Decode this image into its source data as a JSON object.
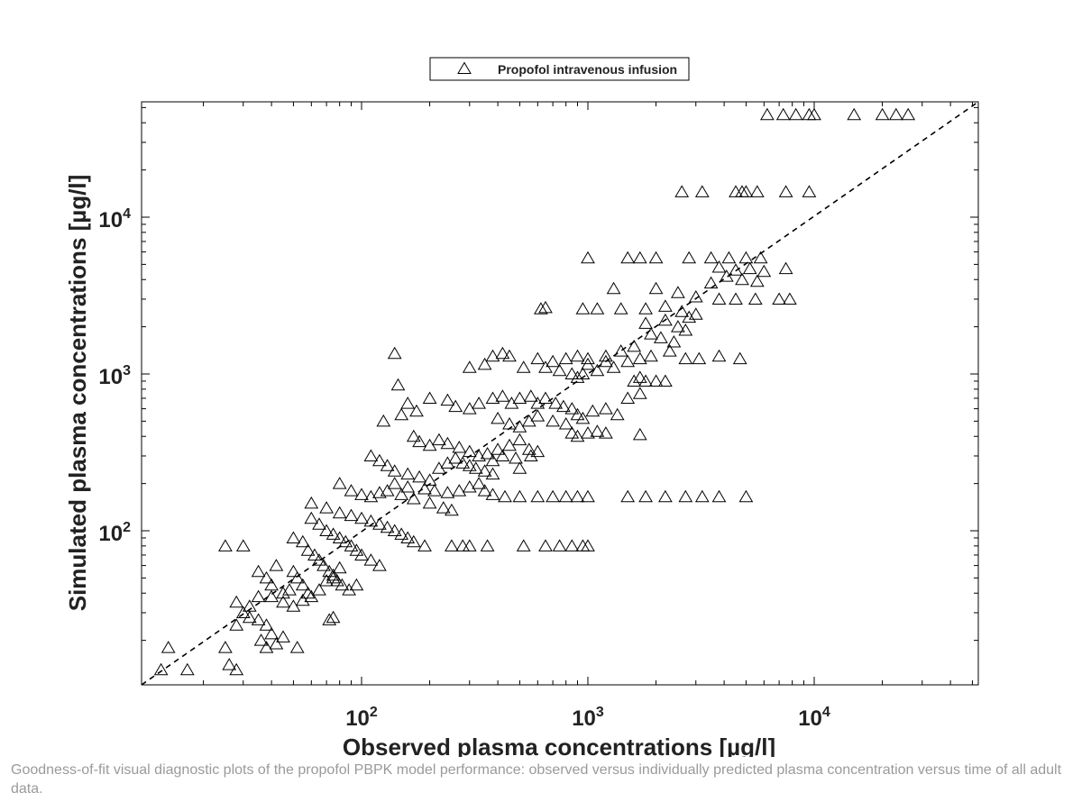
{
  "chart_data": {
    "type": "scatter",
    "xlabel": "Observed plasma concentrations [µg/l]",
    "ylabel": "Simulated plasma concentrations [µg/l]",
    "x_scale": "log",
    "y_scale": "log",
    "xlim": [
      10,
      50000
    ],
    "ylim": [
      10,
      50000
    ],
    "x_ticks": [
      {
        "value": 100,
        "base": "10",
        "exp": "2"
      },
      {
        "value": 1000,
        "base": "10",
        "exp": "3"
      },
      {
        "value": 10000,
        "base": "10",
        "exp": "4"
      }
    ],
    "y_ticks": [
      {
        "value": 100,
        "base": "10",
        "exp": "2"
      },
      {
        "value": 1000,
        "base": "10",
        "exp": "3"
      },
      {
        "value": 10000,
        "base": "10",
        "exp": "4"
      }
    ],
    "grid": false,
    "legend": {
      "position": "top-center",
      "marker": "triangle",
      "label": "Propofol intravenous infusion"
    },
    "reference_line": {
      "style": "dashed",
      "type": "identity (y = x)"
    },
    "series": [
      {
        "name": "Propofol intravenous infusion",
        "marker": "triangle",
        "color": "#000000",
        "points": [
          [
            6200,
            45000
          ],
          [
            7300,
            45000
          ],
          [
            8300,
            45000
          ],
          [
            9500,
            45000
          ],
          [
            10000,
            45000
          ],
          [
            15000,
            45000
          ],
          [
            20000,
            45000
          ],
          [
            23000,
            45000
          ],
          [
            26000,
            45000
          ],
          [
            2600,
            14500
          ],
          [
            3200,
            14500
          ],
          [
            4500,
            14500
          ],
          [
            4800,
            14500
          ],
          [
            5000,
            14500
          ],
          [
            5600,
            14500
          ],
          [
            7500,
            14500
          ],
          [
            9500,
            14500
          ],
          [
            1000,
            5500
          ],
          [
            1500,
            5500
          ],
          [
            1700,
            5500
          ],
          [
            2000,
            5500
          ],
          [
            2800,
            5500
          ],
          [
            3500,
            5500
          ],
          [
            4200,
            5500
          ],
          [
            5000,
            5500
          ],
          [
            5800,
            5500
          ],
          [
            3800,
            4800
          ],
          [
            4500,
            4600
          ],
          [
            5200,
            4700
          ],
          [
            6000,
            4500
          ],
          [
            7500,
            4700
          ],
          [
            4100,
            4200
          ],
          [
            4800,
            4000
          ],
          [
            5600,
            3900
          ],
          [
            3500,
            3800
          ],
          [
            1300,
            3500
          ],
          [
            2000,
            3500
          ],
          [
            2500,
            3300
          ],
          [
            3000,
            3100
          ],
          [
            3800,
            3000
          ],
          [
            4500,
            3000
          ],
          [
            5500,
            3000
          ],
          [
            7000,
            3000
          ],
          [
            7800,
            3000
          ],
          [
            620,
            2600
          ],
          [
            650,
            2650
          ],
          [
            950,
            2600
          ],
          [
            1100,
            2600
          ],
          [
            1400,
            2600
          ],
          [
            1800,
            2600
          ],
          [
            2200,
            2700
          ],
          [
            2600,
            2500
          ],
          [
            3000,
            2400
          ],
          [
            1800,
            2100
          ],
          [
            2200,
            2200
          ],
          [
            2500,
            2000
          ],
          [
            2800,
            2300
          ],
          [
            1900,
            1800
          ],
          [
            2100,
            1700
          ],
          [
            2400,
            1600
          ],
          [
            2700,
            1900
          ],
          [
            1600,
            1500
          ],
          [
            1200,
            1300
          ],
          [
            1400,
            1400
          ],
          [
            1500,
            1200
          ],
          [
            1300,
            1100
          ],
          [
            1100,
            1050
          ],
          [
            1000,
            1150
          ],
          [
            900,
            950
          ],
          [
            1700,
            1250
          ],
          [
            1900,
            1300
          ],
          [
            2300,
            1400
          ],
          [
            2700,
            1250
          ],
          [
            3100,
            1250
          ],
          [
            4700,
            1250
          ],
          [
            3800,
            1300
          ],
          [
            140,
            1350
          ],
          [
            380,
            1300
          ],
          [
            420,
            1350
          ],
          [
            450,
            1300
          ],
          [
            600,
            1250
          ],
          [
            700,
            1200
          ],
          [
            800,
            1250
          ],
          [
            900,
            1300
          ],
          [
            1000,
            1250
          ],
          [
            1200,
            1200
          ],
          [
            300,
            1100
          ],
          [
            350,
            1150
          ],
          [
            520,
            1100
          ],
          [
            650,
            1100
          ],
          [
            750,
            1050
          ],
          [
            850,
            1000
          ],
          [
            950,
            1000
          ],
          [
            1600,
            900
          ],
          [
            1800,
            900
          ],
          [
            2000,
            900
          ],
          [
            2200,
            900
          ],
          [
            1700,
            950
          ],
          [
            145,
            850
          ],
          [
            160,
            650
          ],
          [
            125,
            500
          ],
          [
            150,
            550
          ],
          [
            175,
            580
          ],
          [
            200,
            700
          ],
          [
            240,
            680
          ],
          [
            260,
            620
          ],
          [
            300,
            600
          ],
          [
            330,
            650
          ],
          [
            380,
            700
          ],
          [
            420,
            720
          ],
          [
            460,
            650
          ],
          [
            500,
            700
          ],
          [
            560,
            720
          ],
          [
            600,
            650
          ],
          [
            650,
            700
          ],
          [
            720,
            650
          ],
          [
            780,
            620
          ],
          [
            850,
            600
          ],
          [
            900,
            550
          ],
          [
            950,
            520
          ],
          [
            1050,
            580
          ],
          [
            1200,
            600
          ],
          [
            1350,
            550
          ],
          [
            1500,
            700
          ],
          [
            1700,
            750
          ],
          [
            400,
            520
          ],
          [
            450,
            480
          ],
          [
            500,
            460
          ],
          [
            550,
            500
          ],
          [
            600,
            540
          ],
          [
            700,
            500
          ],
          [
            800,
            480
          ],
          [
            850,
            420
          ],
          [
            900,
            400
          ],
          [
            1000,
            420
          ],
          [
            1100,
            430
          ],
          [
            1200,
            420
          ],
          [
            1700,
            410
          ],
          [
            170,
            400
          ],
          [
            180,
            370
          ],
          [
            200,
            350
          ],
          [
            220,
            380
          ],
          [
            240,
            360
          ],
          [
            270,
            340
          ],
          [
            300,
            320
          ],
          [
            330,
            300
          ],
          [
            360,
            310
          ],
          [
            400,
            330
          ],
          [
            450,
            350
          ],
          [
            500,
            380
          ],
          [
            550,
            330
          ],
          [
            380,
            280
          ],
          [
            420,
            300
          ],
          [
            480,
            290
          ],
          [
            500,
            250
          ],
          [
            560,
            300
          ],
          [
            600,
            320
          ],
          [
            110,
            300
          ],
          [
            120,
            280
          ],
          [
            130,
            260
          ],
          [
            140,
            240
          ],
          [
            160,
            230
          ],
          [
            180,
            220
          ],
          [
            200,
            210
          ],
          [
            220,
            250
          ],
          [
            240,
            270
          ],
          [
            260,
            290
          ],
          [
            280,
            270
          ],
          [
            300,
            260
          ],
          [
            320,
            250
          ],
          [
            350,
            240
          ],
          [
            380,
            230
          ],
          [
            140,
            200
          ],
          [
            160,
            190
          ],
          [
            190,
            185
          ],
          [
            210,
            180
          ],
          [
            240,
            175
          ],
          [
            270,
            180
          ],
          [
            300,
            190
          ],
          [
            330,
            200
          ],
          [
            350,
            180
          ],
          [
            380,
            170
          ],
          [
            430,
            165
          ],
          [
            500,
            165
          ],
          [
            600,
            165
          ],
          [
            700,
            165
          ],
          [
            800,
            165
          ],
          [
            900,
            165
          ],
          [
            1000,
            165
          ],
          [
            1500,
            165
          ],
          [
            1800,
            165
          ],
          [
            2200,
            165
          ],
          [
            2700,
            165
          ],
          [
            3200,
            165
          ],
          [
            3800,
            165
          ],
          [
            5000,
            165
          ],
          [
            80,
            200
          ],
          [
            90,
            180
          ],
          [
            100,
            170
          ],
          [
            110,
            165
          ],
          [
            120,
            175
          ],
          [
            130,
            180
          ],
          [
            150,
            170
          ],
          [
            170,
            160
          ],
          [
            200,
            150
          ],
          [
            230,
            140
          ],
          [
            250,
            135
          ],
          [
            60,
            150
          ],
          [
            70,
            140
          ],
          [
            80,
            130
          ],
          [
            90,
            125
          ],
          [
            100,
            120
          ],
          [
            110,
            115
          ],
          [
            120,
            110
          ],
          [
            130,
            105
          ],
          [
            140,
            100
          ],
          [
            150,
            95
          ],
          [
            160,
            90
          ],
          [
            170,
            85
          ],
          [
            190,
            80
          ],
          [
            60,
            120
          ],
          [
            65,
            110
          ],
          [
            70,
            100
          ],
          [
            75,
            95
          ],
          [
            80,
            90
          ],
          [
            85,
            85
          ],
          [
            90,
            80
          ],
          [
            95,
            75
          ],
          [
            100,
            70
          ],
          [
            110,
            65
          ],
          [
            120,
            60
          ],
          [
            250,
            80
          ],
          [
            280,
            80
          ],
          [
            300,
            80
          ],
          [
            360,
            80
          ],
          [
            520,
            80
          ],
          [
            650,
            80
          ],
          [
            750,
            80
          ],
          [
            850,
            80
          ],
          [
            950,
            80
          ],
          [
            1000,
            80
          ],
          [
            50,
            90
          ],
          [
            55,
            85
          ],
          [
            58,
            75
          ],
          [
            62,
            70
          ],
          [
            65,
            65
          ],
          [
            68,
            60
          ],
          [
            72,
            55
          ],
          [
            75,
            50
          ],
          [
            78,
            48
          ],
          [
            82,
            45
          ],
          [
            88,
            42
          ],
          [
            95,
            45
          ],
          [
            25,
            80
          ],
          [
            30,
            80
          ],
          [
            35,
            55
          ],
          [
            38,
            50
          ],
          [
            40,
            45
          ],
          [
            42,
            60
          ],
          [
            45,
            40
          ],
          [
            48,
            42
          ],
          [
            50,
            55
          ],
          [
            52,
            50
          ],
          [
            55,
            45
          ],
          [
            58,
            40
          ],
          [
            40,
            38
          ],
          [
            45,
            35
          ],
          [
            50,
            33
          ],
          [
            55,
            36
          ],
          [
            60,
            38
          ],
          [
            65,
            42
          ],
          [
            70,
            48
          ],
          [
            75,
            52
          ],
          [
            80,
            58
          ],
          [
            28,
            35
          ],
          [
            30,
            30
          ],
          [
            32,
            28
          ],
          [
            35,
            27
          ],
          [
            38,
            25
          ],
          [
            40,
            22
          ],
          [
            36,
            20
          ],
          [
            38,
            18
          ],
          [
            42,
            19
          ],
          [
            45,
            21
          ],
          [
            52,
            18
          ],
          [
            28,
            25
          ],
          [
            32,
            33
          ],
          [
            35,
            38
          ],
          [
            72,
            27
          ],
          [
            75,
            28
          ],
          [
            26,
            14
          ],
          [
            28,
            13
          ],
          [
            14,
            18
          ],
          [
            13,
            13
          ],
          [
            17,
            13
          ],
          [
            25,
            18
          ]
        ]
      }
    ]
  },
  "caption": "Goodness-of-fit visual diagnostic plots of the propofol PBPK model performance: observed versus individually predicted plasma concentration versus time of all adult data."
}
